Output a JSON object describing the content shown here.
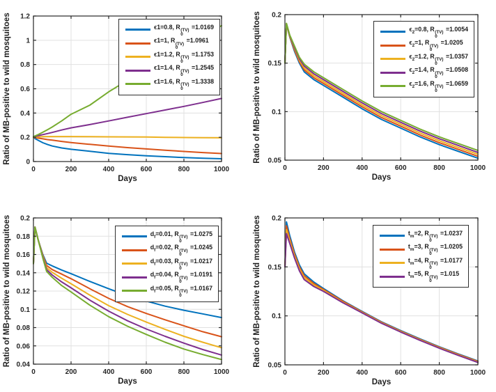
{
  "figure": {
    "background": "#ffffff",
    "axis_color": "#262626",
    "grid_color": "#e0e0e0",
    "legend_r": {
      "base": "R",
      "sub": "0",
      "sup": "(TV)"
    },
    "series_colors": {
      "blue": "#0072BD",
      "orange": "#D95319",
      "yellow": "#EDB120",
      "purple": "#7E2F8E",
      "green": "#77AC30"
    }
  },
  "chart_data": [
    {
      "type": "line",
      "position": "top-left",
      "xlabel": "Days",
      "ylabel": "Ratio of MB-positive to wild mosquitoes",
      "xlim": [
        0,
        1000
      ],
      "ylim": [
        0,
        1.2
      ],
      "xticks": [
        "0",
        "200",
        "400",
        "600",
        "800",
        "1000"
      ],
      "yticks": [
        "0",
        "0.2",
        "0.4",
        "0.6",
        "0.8",
        "1",
        "1.2"
      ],
      "grid": true,
      "legend_position": "top-right",
      "series": [
        {
          "name": "epsilon1-0.8",
          "color": "#0072BD",
          "legend": {
            "param_base": "ϵ1",
            "param_sub": "",
            "param_eq": "=0.8, ",
            "r_eq": " =1.0169"
          },
          "x": [
            0,
            10,
            25,
            50,
            75,
            100,
            150,
            200,
            300,
            400,
            500,
            600,
            700,
            800,
            900,
            1000
          ],
          "y": [
            0.2,
            0.188,
            0.175,
            0.155,
            0.14,
            0.128,
            0.112,
            0.101,
            0.085,
            0.068,
            0.057,
            0.047,
            0.04,
            0.033,
            0.027,
            0.023
          ]
        },
        {
          "name": "epsilon1-1",
          "color": "#D95319",
          "legend": {
            "param_base": "ϵ1",
            "param_sub": "",
            "param_eq": "=1, ",
            "r_eq": " =1.0961"
          },
          "x": [
            0,
            10,
            25,
            50,
            75,
            100,
            150,
            200,
            300,
            400,
            500,
            600,
            700,
            800,
            900,
            1000
          ],
          "y": [
            0.2,
            0.197,
            0.193,
            0.187,
            0.181,
            0.176,
            0.166,
            0.157,
            0.142,
            0.128,
            0.115,
            0.104,
            0.093,
            0.083,
            0.074,
            0.066
          ]
        },
        {
          "name": "epsilon1-1.2",
          "color": "#EDB120",
          "legend": {
            "param_base": "ϵ1",
            "param_sub": "",
            "param_eq": "=1.2, ",
            "r_eq": " =1.1753"
          },
          "x": [
            0,
            10,
            25,
            50,
            75,
            100,
            150,
            200,
            300,
            400,
            500,
            600,
            700,
            800,
            900,
            1000
          ],
          "y": [
            0.2,
            0.201,
            0.203,
            0.205,
            0.206,
            0.206,
            0.206,
            0.206,
            0.205,
            0.204,
            0.203,
            0.202,
            0.2,
            0.198,
            0.197,
            0.196
          ]
        },
        {
          "name": "epsilon1-1.4",
          "color": "#7E2F8E",
          "legend": {
            "param_base": "ϵ1",
            "param_sub": "",
            "param_eq": "=1.4, ",
            "r_eq": " =1.2545"
          },
          "x": [
            0,
            10,
            25,
            50,
            75,
            100,
            150,
            200,
            300,
            400,
            500,
            600,
            700,
            800,
            900,
            1000
          ],
          "y": [
            0.205,
            0.208,
            0.213,
            0.222,
            0.231,
            0.24,
            0.26,
            0.278,
            0.305,
            0.335,
            0.365,
            0.395,
            0.425,
            0.455,
            0.487,
            0.52
          ]
        },
        {
          "name": "epsilon1-1.6",
          "color": "#77AC30",
          "legend": {
            "param_base": "ϵ1",
            "param_sub": "",
            "param_eq": "=1.6, ",
            "r_eq": " =1.3338"
          },
          "x": [
            0,
            10,
            25,
            50,
            75,
            100,
            150,
            200,
            300,
            400,
            500,
            600,
            700,
            800,
            900,
            1000
          ],
          "y": [
            0.205,
            0.212,
            0.222,
            0.242,
            0.263,
            0.285,
            0.335,
            0.39,
            0.465,
            0.575,
            0.67,
            0.765,
            0.855,
            0.945,
            1.035,
            1.12
          ]
        }
      ]
    },
    {
      "type": "line",
      "position": "top-right",
      "xlabel": "Days",
      "ylabel": "Ratio of MB-positive to wild mosquitoes",
      "xlim": [
        0,
        1000
      ],
      "ylim": [
        0.05,
        0.2
      ],
      "xticks": [
        "0",
        "200",
        "400",
        "600",
        "800",
        "1000"
      ],
      "yticks": [
        "0.05",
        "0.1",
        "0.15",
        "0.2"
      ],
      "grid": true,
      "legend_position": "top-right",
      "series": [
        {
          "name": "epsilon2-0.8",
          "color": "#0072BD",
          "legend": {
            "param_base": "ϵ",
            "param_sub": "2",
            "param_eq": "=0.8, ",
            "r_eq": " =1.0054"
          },
          "x": [
            0,
            8,
            25,
            50,
            75,
            100,
            150,
            200,
            300,
            400,
            500,
            600,
            700,
            800,
            900,
            1000
          ],
          "y": [
            0.15,
            0.19,
            0.177,
            0.162,
            0.15,
            0.141,
            0.133,
            0.127,
            0.115,
            0.103,
            0.092,
            0.083,
            0.074,
            0.066,
            0.059,
            0.052
          ]
        },
        {
          "name": "epsilon2-1",
          "color": "#D95319",
          "legend": {
            "param_base": "ϵ",
            "param_sub": "2",
            "param_eq": "=1, ",
            "r_eq": " =1.0205"
          },
          "x": [
            0,
            8,
            25,
            50,
            75,
            100,
            150,
            200,
            300,
            400,
            500,
            600,
            700,
            800,
            900,
            1000
          ],
          "y": [
            0.15,
            0.19,
            0.1775,
            0.1635,
            0.1515,
            0.143,
            0.135,
            0.129,
            0.117,
            0.105,
            0.094,
            0.085,
            0.076,
            0.068,
            0.061,
            0.054
          ]
        },
        {
          "name": "epsilon2-1.2",
          "color": "#EDB120",
          "legend": {
            "param_base": "ϵ",
            "param_sub": "2",
            "param_eq": "=1.2, ",
            "r_eq": " =1.0357"
          },
          "x": [
            0,
            8,
            25,
            50,
            75,
            100,
            150,
            200,
            300,
            400,
            500,
            600,
            700,
            800,
            900,
            1000
          ],
          "y": [
            0.15,
            0.1905,
            0.178,
            0.165,
            0.153,
            0.145,
            0.137,
            0.131,
            0.119,
            0.107,
            0.096,
            0.087,
            0.078,
            0.07,
            0.063,
            0.056
          ]
        },
        {
          "name": "epsilon2-1.4",
          "color": "#7E2F8E",
          "legend": {
            "param_base": "ϵ",
            "param_sub": "2",
            "param_eq": "=1.4, ",
            "r_eq": " =1.0508"
          },
          "x": [
            0,
            8,
            25,
            50,
            75,
            100,
            150,
            200,
            300,
            400,
            500,
            600,
            700,
            800,
            900,
            1000
          ],
          "y": [
            0.15,
            0.1905,
            0.1785,
            0.166,
            0.1545,
            0.147,
            0.139,
            0.133,
            0.121,
            0.109,
            0.098,
            0.089,
            0.08,
            0.072,
            0.065,
            0.058
          ]
        },
        {
          "name": "epsilon2-1.6",
          "color": "#77AC30",
          "legend": {
            "param_base": "ϵ",
            "param_sub": "2",
            "param_eq": "=1.6, ",
            "r_eq": " =1.0659"
          },
          "x": [
            0,
            8,
            25,
            50,
            75,
            100,
            150,
            200,
            300,
            400,
            500,
            600,
            700,
            800,
            900,
            1000
          ],
          "y": [
            0.15,
            0.191,
            0.179,
            0.1675,
            0.156,
            0.149,
            0.141,
            0.135,
            0.123,
            0.111,
            0.1,
            0.091,
            0.082,
            0.074,
            0.067,
            0.06
          ]
        }
      ]
    },
    {
      "type": "line",
      "position": "bottom-left",
      "xlabel": "Days",
      "ylabel": "Ratio of MB-positive to wild mosquitoes",
      "xlim": [
        0,
        1000
      ],
      "ylim": [
        0.04,
        0.2
      ],
      "xticks": [
        "0",
        "200",
        "400",
        "600",
        "800",
        "1000"
      ],
      "yticks": [
        "0.04",
        "0.06",
        "0.08",
        "0.1",
        "0.12",
        "0.14",
        "0.16",
        "0.18",
        "0.2"
      ],
      "grid": true,
      "legend_position": "top-right",
      "series": [
        {
          "name": "df-0.01",
          "color": "#0072BD",
          "legend": {
            "param_base": "d",
            "param_sub": "f",
            "param_eq": "=0.01, ",
            "r_eq": " =1.0275"
          },
          "x": [
            0,
            8,
            25,
            50,
            70,
            100,
            150,
            200,
            300,
            400,
            500,
            600,
            700,
            800,
            900,
            1000
          ],
          "y": [
            0.15,
            0.19,
            0.176,
            0.16,
            0.1505,
            0.1475,
            0.143,
            0.139,
            0.1305,
            0.1225,
            0.115,
            0.109,
            0.1035,
            0.099,
            0.095,
            0.091
          ]
        },
        {
          "name": "df-0.02",
          "color": "#D95319",
          "legend": {
            "param_base": "d",
            "param_sub": "f",
            "param_eq": "=0.02, ",
            "r_eq": " =1.0245"
          },
          "x": [
            0,
            8,
            25,
            50,
            70,
            100,
            150,
            200,
            300,
            400,
            500,
            600,
            700,
            800,
            900,
            1000
          ],
          "y": [
            0.15,
            0.19,
            0.176,
            0.159,
            0.148,
            0.1435,
            0.1385,
            0.1335,
            0.1225,
            0.112,
            0.103,
            0.0955,
            0.0885,
            0.082,
            0.0755,
            0.07
          ]
        },
        {
          "name": "df-0.03",
          "color": "#EDB120",
          "legend": {
            "param_base": "d",
            "param_sub": "f",
            "param_eq": "=0.03, ",
            "r_eq": " =1.0217"
          },
          "x": [
            0,
            8,
            25,
            50,
            70,
            100,
            150,
            200,
            300,
            400,
            500,
            600,
            700,
            800,
            900,
            1000
          ],
          "y": [
            0.15,
            0.19,
            0.176,
            0.158,
            0.1455,
            0.1405,
            0.134,
            0.128,
            0.1155,
            0.104,
            0.0945,
            0.086,
            0.078,
            0.0705,
            0.064,
            0.058
          ]
        },
        {
          "name": "df-0.04",
          "color": "#7E2F8E",
          "legend": {
            "param_base": "d",
            "param_sub": "f",
            "param_eq": "=0.04, ",
            "r_eq": " =1.0191"
          },
          "x": [
            0,
            8,
            25,
            50,
            70,
            100,
            150,
            200,
            300,
            400,
            500,
            600,
            700,
            800,
            900,
            1000
          ],
          "y": [
            0.15,
            0.19,
            0.176,
            0.157,
            0.1435,
            0.1375,
            0.13,
            0.1235,
            0.11,
            0.098,
            0.0875,
            0.0785,
            0.0705,
            0.063,
            0.056,
            0.05
          ]
        },
        {
          "name": "df-0.05",
          "color": "#77AC30",
          "legend": {
            "param_base": "d",
            "param_sub": "f",
            "param_eq": "=0.05, ",
            "r_eq": " =1.0167"
          },
          "x": [
            0,
            8,
            25,
            50,
            70,
            100,
            150,
            200,
            300,
            400,
            500,
            600,
            700,
            800,
            900,
            1000
          ],
          "y": [
            0.15,
            0.19,
            0.176,
            0.156,
            0.1415,
            0.135,
            0.126,
            0.119,
            0.1045,
            0.092,
            0.0815,
            0.0725,
            0.064,
            0.0565,
            0.0505,
            0.045
          ]
        }
      ]
    },
    {
      "type": "line",
      "position": "bottom-right",
      "xlabel": "Days",
      "ylabel": "Ratio of MB-positive to wild mosquitoes",
      "xlim": [
        0,
        1000
      ],
      "ylim": [
        0.05,
        0.2
      ],
      "xticks": [
        "0",
        "200",
        "400",
        "600",
        "800",
        "1000"
      ],
      "yticks": [
        "0.05",
        "0.1",
        "0.15",
        "0.2"
      ],
      "grid": true,
      "legend_position": "top-right",
      "series": [
        {
          "name": "tm-2",
          "color": "#0072BD",
          "legend": {
            "param_base": "t",
            "param_sub": "m",
            "param_eq": "=2, ",
            "r_eq": " =1.0237"
          },
          "x": [
            0,
            8,
            25,
            50,
            75,
            100,
            150,
            200,
            300,
            400,
            500,
            600,
            700,
            800,
            900,
            1000
          ],
          "y": [
            0.15,
            0.196,
            0.182,
            0.165,
            0.152,
            0.143,
            0.1345,
            0.128,
            0.1155,
            0.1045,
            0.094,
            0.085,
            0.0765,
            0.0685,
            0.061,
            0.054
          ]
        },
        {
          "name": "tm-3",
          "color": "#D95319",
          "legend": {
            "param_base": "t",
            "param_sub": "m",
            "param_eq": "=3, ",
            "r_eq": " =1.0205"
          },
          "x": [
            0,
            8,
            25,
            50,
            75,
            100,
            150,
            200,
            300,
            400,
            500,
            600,
            700,
            800,
            900,
            1000
          ],
          "y": [
            0.15,
            0.192,
            0.179,
            0.163,
            0.15,
            0.141,
            0.133,
            0.127,
            0.115,
            0.104,
            0.0935,
            0.0845,
            0.076,
            0.068,
            0.0605,
            0.0535
          ]
        },
        {
          "name": "tm-4",
          "color": "#EDB120",
          "legend": {
            "param_base": "t",
            "param_sub": "m",
            "param_eq": "=4, ",
            "r_eq": " =1.0177"
          },
          "x": [
            0,
            8,
            25,
            50,
            75,
            100,
            150,
            200,
            300,
            400,
            500,
            600,
            700,
            800,
            900,
            1000
          ],
          "y": [
            0.15,
            0.188,
            0.1765,
            0.161,
            0.148,
            0.139,
            0.1315,
            0.126,
            0.114,
            0.1035,
            0.093,
            0.084,
            0.0755,
            0.0675,
            0.06,
            0.053
          ]
        },
        {
          "name": "tm-5",
          "color": "#7E2F8E",
          "legend": {
            "param_base": "t",
            "param_sub": "m",
            "param_eq": "=5, ",
            "r_eq": " =1.015"
          },
          "x": [
            0,
            8,
            25,
            50,
            75,
            100,
            150,
            200,
            300,
            400,
            500,
            600,
            700,
            800,
            900,
            1000
          ],
          "y": [
            0.15,
            0.184,
            0.174,
            0.159,
            0.146,
            0.137,
            0.13,
            0.125,
            0.1135,
            0.103,
            0.0925,
            0.0835,
            0.075,
            0.067,
            0.0595,
            0.0525
          ]
        }
      ]
    }
  ]
}
